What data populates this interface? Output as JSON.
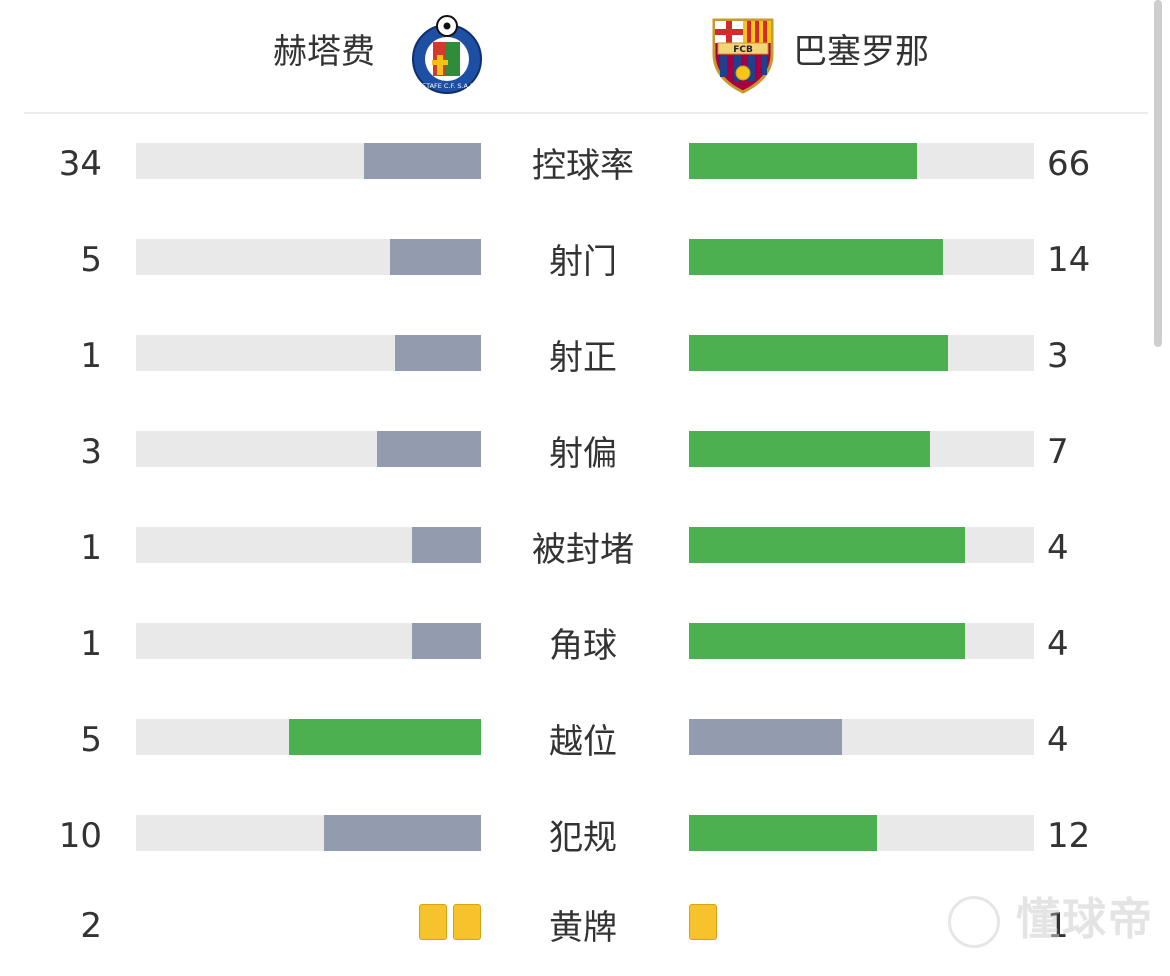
{
  "header": {
    "home_team": "赫塔费",
    "away_team": "巴塞罗那",
    "home_crest_icon": "getafe-crest-icon",
    "away_crest_icon": "barcelona-crest-icon",
    "getafe_crest_text": "GETAFE C.F. S.A.D.",
    "barca_crest_text": "FCB"
  },
  "colors": {
    "better": "#4caf50",
    "worse": "#939bae",
    "track": "#e9e9e9",
    "card": "#f6c32d"
  },
  "stats": [
    {
      "label": "控球率",
      "home": "34",
      "away": "66",
      "home_share": 0.34,
      "away_share": 0.66,
      "leader": "away"
    },
    {
      "label": "射门",
      "home": "5",
      "away": "14",
      "home_share": 0.2632,
      "away_share": 0.7368,
      "leader": "away"
    },
    {
      "label": "射正",
      "home": "1",
      "away": "3",
      "home_share": 0.25,
      "away_share": 0.75,
      "leader": "away"
    },
    {
      "label": "射偏",
      "home": "3",
      "away": "7",
      "home_share": 0.3,
      "away_share": 0.7,
      "leader": "away"
    },
    {
      "label": "被封堵",
      "home": "1",
      "away": "4",
      "home_share": 0.2,
      "away_share": 0.8,
      "leader": "away"
    },
    {
      "label": "角球",
      "home": "1",
      "away": "4",
      "home_share": 0.2,
      "away_share": 0.8,
      "leader": "away"
    },
    {
      "label": "越位",
      "home": "5",
      "away": "4",
      "home_share": 0.5556,
      "away_share": 0.4444,
      "leader": "home"
    },
    {
      "label": "犯规",
      "home": "10",
      "away": "12",
      "home_share": 0.4545,
      "away_share": 0.5455,
      "leader": "away"
    }
  ],
  "yellow_cards": {
    "label": "黄牌",
    "home": "2",
    "away": "1",
    "home_count": 2,
    "away_count": 1
  },
  "watermark": {
    "text": "懂球帝",
    "icon": "dongqiudi-logo-icon"
  }
}
